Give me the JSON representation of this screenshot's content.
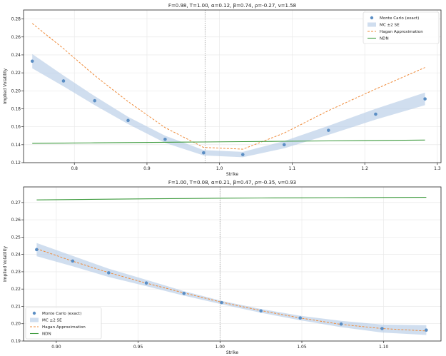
{
  "chart_data": [
    {
      "type": "scatter",
      "title": "F=0.98, T=1.00, α=0.12, β=0.74, ρ=-0.27, ν=1.58",
      "xlabel": "Strike",
      "ylabel": "Implied Volatility",
      "xlim": [
        0.73,
        1.305
      ],
      "ylim": [
        0.12,
        0.29
      ],
      "xticks": [
        0.8,
        0.9,
        1.0,
        1.1,
        1.2,
        1.3
      ],
      "xtick_labels": [
        "0.8",
        "0.9",
        "1.0",
        "1.1",
        "1.2",
        "1.3"
      ],
      "yticks": [
        0.12,
        0.14,
        0.16,
        0.18,
        0.2,
        0.22,
        0.24,
        0.26,
        0.28
      ],
      "ytick_labels": [
        "0.12",
        "0.14",
        "0.16",
        "0.18",
        "0.20",
        "0.22",
        "0.24",
        "0.26",
        "0.28"
      ],
      "forward_line": 0.98,
      "grid": true,
      "legend_position": "top-right",
      "x": [
        0.742,
        0.785,
        0.828,
        0.874,
        0.925,
        0.978,
        1.032,
        1.089,
        1.15,
        1.215,
        1.283
      ],
      "series": [
        {
          "name": "Monte Carlo (exact)",
          "kind": "scatter",
          "color": "#5b8ec4",
          "values": [
            0.233,
            0.211,
            0.189,
            0.167,
            0.146,
            0.131,
            0.129,
            0.14,
            0.156,
            0.174,
            0.191
          ]
        },
        {
          "name": "MC ±2 SE",
          "kind": "band",
          "color": "#b7cde6",
          "upper": [
            0.241,
            0.217,
            0.194,
            0.171,
            0.15,
            0.134,
            0.132,
            0.144,
            0.161,
            0.18,
            0.198
          ],
          "lower": [
            0.225,
            0.205,
            0.184,
            0.163,
            0.142,
            0.128,
            0.126,
            0.136,
            0.151,
            0.168,
            0.184
          ]
        },
        {
          "name": "Hagan Approximation",
          "kind": "dashed",
          "color": "#ef8b3a",
          "values": [
            0.275,
            0.247,
            0.217,
            0.188,
            0.159,
            0.137,
            0.135,
            0.153,
            0.178,
            0.202,
            0.226
          ]
        },
        {
          "name": "NDN",
          "kind": "line",
          "color": "#3d9a3d",
          "values": [
            0.1415,
            0.1418,
            0.1421,
            0.1424,
            0.1427,
            0.143,
            0.1434,
            0.1438,
            0.1442,
            0.1447,
            0.1452
          ]
        }
      ]
    },
    {
      "type": "scatter",
      "title": "F=1.00, T=0.08, α=0.21, β=0.47, ρ=-0.35, ν=0.93",
      "xlabel": "Strike",
      "ylabel": "Implied Volatility",
      "xlim": [
        0.88,
        1.135
      ],
      "ylim": [
        0.19,
        0.279
      ],
      "xticks": [
        0.9,
        0.95,
        1.0,
        1.05,
        1.1
      ],
      "xtick_labels": [
        "0.90",
        "0.95",
        "1.00",
        "1.05",
        "1.10"
      ],
      "yticks": [
        0.19,
        0.2,
        0.21,
        0.22,
        0.23,
        0.24,
        0.25,
        0.26,
        0.27
      ],
      "ytick_labels": [
        "0.19",
        "0.20",
        "0.21",
        "0.22",
        "0.23",
        "0.24",
        "0.25",
        "0.26",
        "0.27"
      ],
      "forward_line": 1.0,
      "grid": true,
      "legend_position": "bottom-left",
      "x": [
        0.888,
        0.91,
        0.932,
        0.955,
        0.978,
        1.001,
        1.025,
        1.049,
        1.074,
        1.099,
        1.126
      ],
      "series": [
        {
          "name": "Monte Carlo (exact)",
          "kind": "scatter",
          "color": "#5b8ec4",
          "values": [
            0.2428,
            0.2362,
            0.2294,
            0.2235,
            0.2175,
            0.2122,
            0.2074,
            0.2033,
            0.1998,
            0.1972,
            0.1963
          ]
        },
        {
          "name": "MC ±2 SE",
          "kind": "band",
          "color": "#b7cde6",
          "upper": [
            0.2466,
            0.2392,
            0.2318,
            0.2253,
            0.2188,
            0.2132,
            0.2085,
            0.2046,
            0.2016,
            0.1995,
            0.1991
          ],
          "lower": [
            0.239,
            0.2332,
            0.227,
            0.2217,
            0.2162,
            0.2112,
            0.2063,
            0.202,
            0.198,
            0.1949,
            0.1935
          ]
        },
        {
          "name": "Hagan Approximation",
          "kind": "dashed",
          "color": "#ef8b3a",
          "values": [
            0.2433,
            0.2361,
            0.2295,
            0.2234,
            0.2178,
            0.2124,
            0.2076,
            0.2033,
            0.1996,
            0.1972,
            0.1958
          ]
        },
        {
          "name": "NDN",
          "kind": "line",
          "color": "#3d9a3d",
          "values": [
            0.2715,
            0.2717,
            0.2719,
            0.2721,
            0.2723,
            0.2725,
            0.2726,
            0.2727,
            0.2728,
            0.2729,
            0.273
          ]
        }
      ]
    }
  ]
}
